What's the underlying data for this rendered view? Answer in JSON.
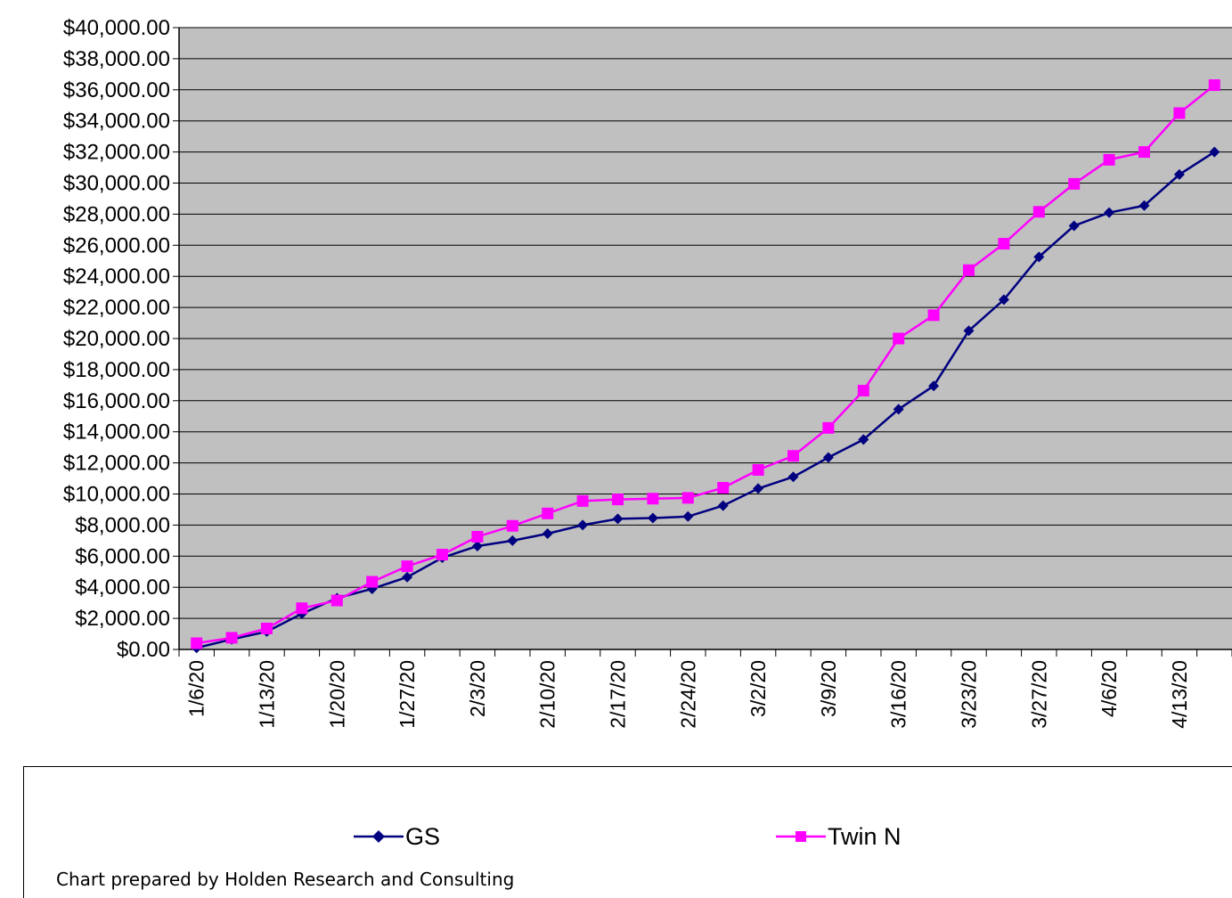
{
  "chart_data": {
    "type": "line",
    "title": "",
    "xlabel": "",
    "ylabel": "",
    "ylim": [
      0,
      40000
    ],
    "y_ticks": [
      "$0.00",
      "$2,000.00",
      "$4,000.00",
      "$6,000.00",
      "$8,000.00",
      "$10,000.00",
      "$12,000.00",
      "$14,000.00",
      "$16,000.00",
      "$18,000.00",
      "$20,000.00",
      "$22,000.00",
      "$24,000.00",
      "$26,000.00",
      "$28,000.00",
      "$30,000.00",
      "$32,000.00",
      "$34,000.00",
      "$36,000.00",
      "$38,000.00",
      "$40,000.00"
    ],
    "categories": [
      "1/6/20",
      "",
      "1/13/20",
      "",
      "1/20/20",
      "",
      "1/27/20",
      "",
      "2/3/20",
      "",
      "2/10/20",
      "",
      "2/17/20",
      "",
      "2/24/20",
      "",
      "3/2/20",
      "",
      "3/9/20",
      "",
      "3/16/20",
      "",
      "3/23/20",
      "",
      "3/27/20",
      "",
      "4/6/20",
      "",
      "4/13/20",
      ""
    ],
    "grid": true,
    "plot_background": "#c0c0c0",
    "legend_position": "bottom",
    "series": [
      {
        "name": "GS",
        "color": "#000080",
        "marker": "diamond",
        "values": [
          100,
          650,
          1150,
          2300,
          3300,
          3900,
          4650,
          5900,
          6650,
          7000,
          7450,
          8000,
          8400,
          8450,
          8550,
          9250,
          10350,
          11100,
          12350,
          13500,
          15450,
          16950,
          20500,
          22500,
          25250,
          27250,
          28100,
          28550,
          30550,
          32000
        ]
      },
      {
        "name": "Twin N",
        "color": "#ff00ff",
        "marker": "square",
        "values": [
          400,
          750,
          1350,
          2650,
          3150,
          4350,
          5350,
          6100,
          7250,
          7950,
          8750,
          9550,
          9650,
          9700,
          9750,
          10400,
          11550,
          12450,
          14250,
          16650,
          20000,
          21500,
          24400,
          26100,
          28150,
          29950,
          31500,
          32000,
          34500,
          36300
        ]
      }
    ]
  },
  "legend": {
    "gs_label": "GS",
    "twin_label": "Twin N"
  },
  "footer": {
    "credit": "Chart prepared by Holden Research and Consulting"
  }
}
